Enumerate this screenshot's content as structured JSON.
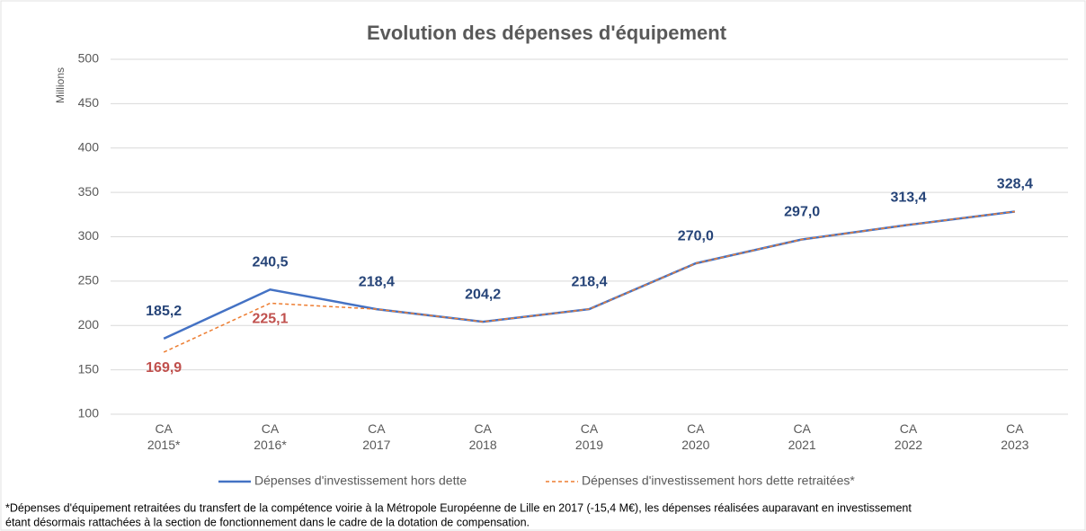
{
  "chart_data": {
    "type": "line",
    "title": "Evolution des dépenses d'équipement",
    "y_label": "Millions",
    "categories": [
      "CA 2015*",
      "CA 2016*",
      "CA 2017",
      "CA 2018",
      "CA 2019",
      "CA 2020",
      "CA 2021",
      "CA 2022",
      "CA 2023"
    ],
    "series": [
      {
        "name": "Dépenses d'investissement hors dette",
        "color": "#4472c4",
        "label_color": "#264478",
        "dashed": false,
        "values": [
          185.2,
          240.5,
          218.4,
          204.2,
          218.4,
          270.0,
          297.0,
          313.4,
          328.4
        ],
        "value_labels": [
          "185,2",
          "240,5",
          "218,4",
          "204,2",
          "218,4",
          "270,0",
          "297,0",
          "313,4",
          "328,4"
        ]
      },
      {
        "name": "Dépenses d'investissement hors dette retraitées*",
        "color": "#ed7d31",
        "label_color": "#c0504d",
        "dashed": true,
        "values": [
          169.9,
          225.1,
          218.4,
          204.2,
          218.4,
          270.0,
          297.0,
          313.4,
          328.4
        ],
        "value_labels": [
          "169,9",
          "225,1",
          null,
          null,
          null,
          null,
          null,
          null,
          null
        ]
      }
    ],
    "ylim": [
      100,
      500
    ],
    "yticks": [
      100,
      150,
      200,
      250,
      300,
      350,
      400,
      450,
      500
    ],
    "grid": true,
    "legend": "bottom",
    "footnote": [
      "*Dépenses d'équipement  retraitées du transfert de la compétence voirie à la Métropole Européenne de Lille en 2017 (-15,4 M€), les dépenses réalisées auparavant en investissement",
      "étant désormais rattachées à la section de fonctionnement dans le cadre de la dotation de compensation."
    ]
  }
}
